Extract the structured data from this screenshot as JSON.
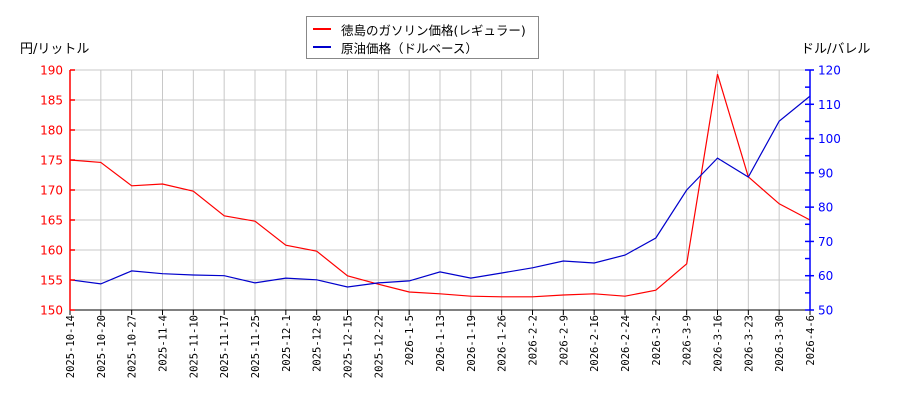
{
  "chart_data": {
    "type": "line",
    "title": "",
    "legend_position": "top-center",
    "grid": true,
    "x": [
      "2025-10-14",
      "2025-10-20",
      "2025-10-27",
      "2025-11-4",
      "2025-11-10",
      "2025-11-17",
      "2025-11-25",
      "2025-12-1",
      "2025-12-8",
      "2025-12-15",
      "2025-12-22",
      "2026-1-5",
      "2026-1-13",
      "2026-1-19",
      "2026-1-26",
      "2026-2-2",
      "2026-2-9",
      "2026-2-16",
      "2026-2-24",
      "2026-3-2",
      "2026-3-9",
      "2026-3-16",
      "2026-3-23",
      "2026-3-30",
      "2026-4-6"
    ],
    "series": [
      {
        "name": "徳島のガソリン価格(レギュラー)",
        "axis": "left",
        "color": "#ff0000",
        "values": [
          175.0,
          174.6,
          170.7,
          171.0,
          169.8,
          165.7,
          164.8,
          160.8,
          159.8,
          155.7,
          154.3,
          153.0,
          152.7,
          152.3,
          152.2,
          152.2,
          152.5,
          152.7,
          152.3,
          153.3,
          157.7,
          189.3,
          172.2,
          167.7,
          165.0
        ]
      },
      {
        "name": "原油価格（ドルベース）",
        "axis": "right",
        "color": "#0000cc",
        "values": [
          58.8,
          57.6,
          61.4,
          60.6,
          60.2,
          60.0,
          57.9,
          59.3,
          58.8,
          56.7,
          57.9,
          58.5,
          61.1,
          59.3,
          60.8,
          62.3,
          64.3,
          63.7,
          66.0,
          71.0,
          85.0,
          94.3,
          88.8,
          105.1,
          112.4
        ]
      }
    ],
    "ylabel": "円/リットル",
    "y2label": "ドル/バレル",
    "ylim": [
      150,
      190
    ],
    "y2lim": [
      50,
      120
    ],
    "yticks": [
      150,
      155,
      160,
      165,
      170,
      175,
      180,
      185,
      190
    ],
    "y2ticks": [
      50,
      60,
      70,
      80,
      90,
      100,
      110,
      120
    ],
    "left_axis_color": "#ff0000",
    "right_axis_color": "#0000ff"
  },
  "legend": {
    "items": [
      {
        "label": "徳島のガソリン価格(レギュラー)",
        "color": "#ff0000"
      },
      {
        "label": "原油価格（ドルベース）",
        "color": "#0000cc"
      }
    ]
  },
  "axes": {
    "left_title": "円/リットル",
    "right_title": "ドル/バレル"
  }
}
